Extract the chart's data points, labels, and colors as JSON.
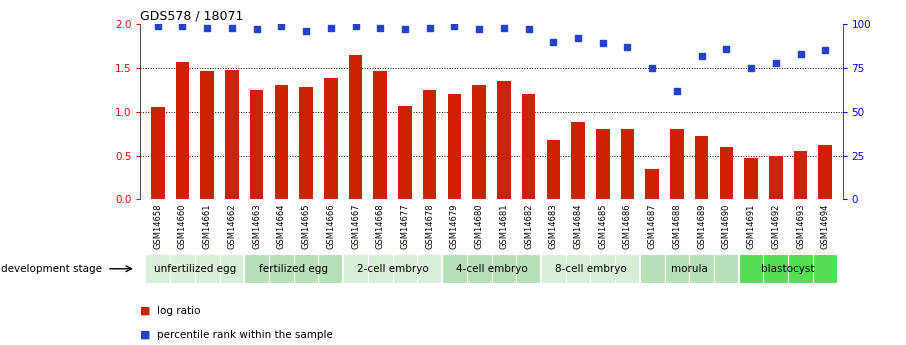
{
  "title": "GDS578 / 18071",
  "samples": [
    "GSM14658",
    "GSM14660",
    "GSM14661",
    "GSM14662",
    "GSM14663",
    "GSM14664",
    "GSM14665",
    "GSM14666",
    "GSM14667",
    "GSM14668",
    "GSM14677",
    "GSM14678",
    "GSM14679",
    "GSM14680",
    "GSM14681",
    "GSM14682",
    "GSM14683",
    "GSM14684",
    "GSM14685",
    "GSM14686",
    "GSM14687",
    "GSM14688",
    "GSM14689",
    "GSM14690",
    "GSM14691",
    "GSM14692",
    "GSM14693",
    "GSM14694"
  ],
  "log_ratio": [
    1.05,
    1.57,
    1.47,
    1.48,
    1.25,
    1.3,
    1.28,
    1.38,
    1.65,
    1.47,
    1.07,
    1.25,
    1.2,
    1.3,
    1.35,
    1.2,
    0.68,
    0.88,
    0.8,
    0.8,
    0.35,
    0.8,
    0.72,
    0.6,
    0.47,
    0.5,
    0.55,
    0.62
  ],
  "percentile_rank": [
    99,
    99,
    98,
    98,
    97,
    99,
    96,
    98,
    99,
    98,
    97,
    98,
    99,
    97,
    98,
    97,
    90,
    92,
    89,
    87,
    75,
    62,
    82,
    86,
    75,
    78,
    83,
    85
  ],
  "stages": [
    {
      "label": "unfertilized egg",
      "start": 0,
      "end": 3,
      "color": "#d8f0d8"
    },
    {
      "label": "fertilized egg",
      "start": 4,
      "end": 7,
      "color": "#b8e0b8"
    },
    {
      "label": "2-cell embryo",
      "start": 8,
      "end": 11,
      "color": "#d8f0d8"
    },
    {
      "label": "4-cell embryo",
      "start": 12,
      "end": 15,
      "color": "#b8e0b8"
    },
    {
      "label": "8-cell embryo",
      "start": 16,
      "end": 19,
      "color": "#d8f0d8"
    },
    {
      "label": "morula",
      "start": 20,
      "end": 23,
      "color": "#b8e0b8"
    },
    {
      "label": "blastocyst",
      "start": 24,
      "end": 27,
      "color": "#55dd55"
    }
  ],
  "bar_color": "#cc2200",
  "dot_color": "#2244cc",
  "ylim_left": [
    0.0,
    2.0
  ],
  "ylim_right": [
    0,
    100
  ],
  "yticks_left": [
    0,
    0.5,
    1.0,
    1.5,
    2.0
  ],
  "yticks_right": [
    0,
    25,
    50,
    75,
    100
  ],
  "legend_items": [
    {
      "label": "log ratio",
      "color": "#cc2200"
    },
    {
      "label": "percentile rank within the sample",
      "color": "#2244cc"
    }
  ],
  "background_color": "#ffffff",
  "arrow_label": "development stage",
  "xlabel_bg": "#d0d0d0"
}
